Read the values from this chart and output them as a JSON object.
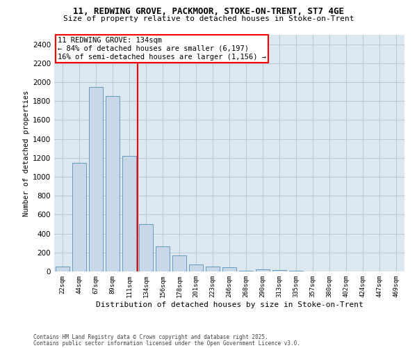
{
  "title_line1": "11, REDWING GROVE, PACKMOOR, STOKE-ON-TRENT, ST7 4GE",
  "title_line2": "Size of property relative to detached houses in Stoke-on-Trent",
  "xlabel": "Distribution of detached houses by size in Stoke-on-Trent",
  "ylabel": "Number of detached properties",
  "categories": [
    "22sqm",
    "44sqm",
    "67sqm",
    "89sqm",
    "111sqm",
    "134sqm",
    "156sqm",
    "178sqm",
    "201sqm",
    "223sqm",
    "246sqm",
    "268sqm",
    "290sqm",
    "313sqm",
    "335sqm",
    "357sqm",
    "380sqm",
    "402sqm",
    "424sqm",
    "447sqm",
    "469sqm"
  ],
  "values": [
    50,
    1150,
    1950,
    1850,
    1220,
    500,
    265,
    170,
    75,
    55,
    45,
    8,
    20,
    15,
    5,
    2,
    1,
    2,
    1,
    0,
    0
  ],
  "bar_color": "#c8d8e8",
  "bar_edge_color": "#6699bb",
  "red_line_index": 5,
  "annotation_text": "11 REDWING GROVE: 134sqm\n← 84% of detached houses are smaller (6,197)\n16% of semi-detached houses are larger (1,156) →",
  "ylim": [
    0,
    2500
  ],
  "yticks": [
    0,
    200,
    400,
    600,
    800,
    1000,
    1200,
    1400,
    1600,
    1800,
    2000,
    2200,
    2400
  ],
  "grid_color": "#b8c8d8",
  "background_color": "#dce8f0",
  "footer_line1": "Contains HM Land Registry data © Crown copyright and database right 2025.",
  "footer_line2": "Contains public sector information licensed under the Open Government Licence v3.0."
}
